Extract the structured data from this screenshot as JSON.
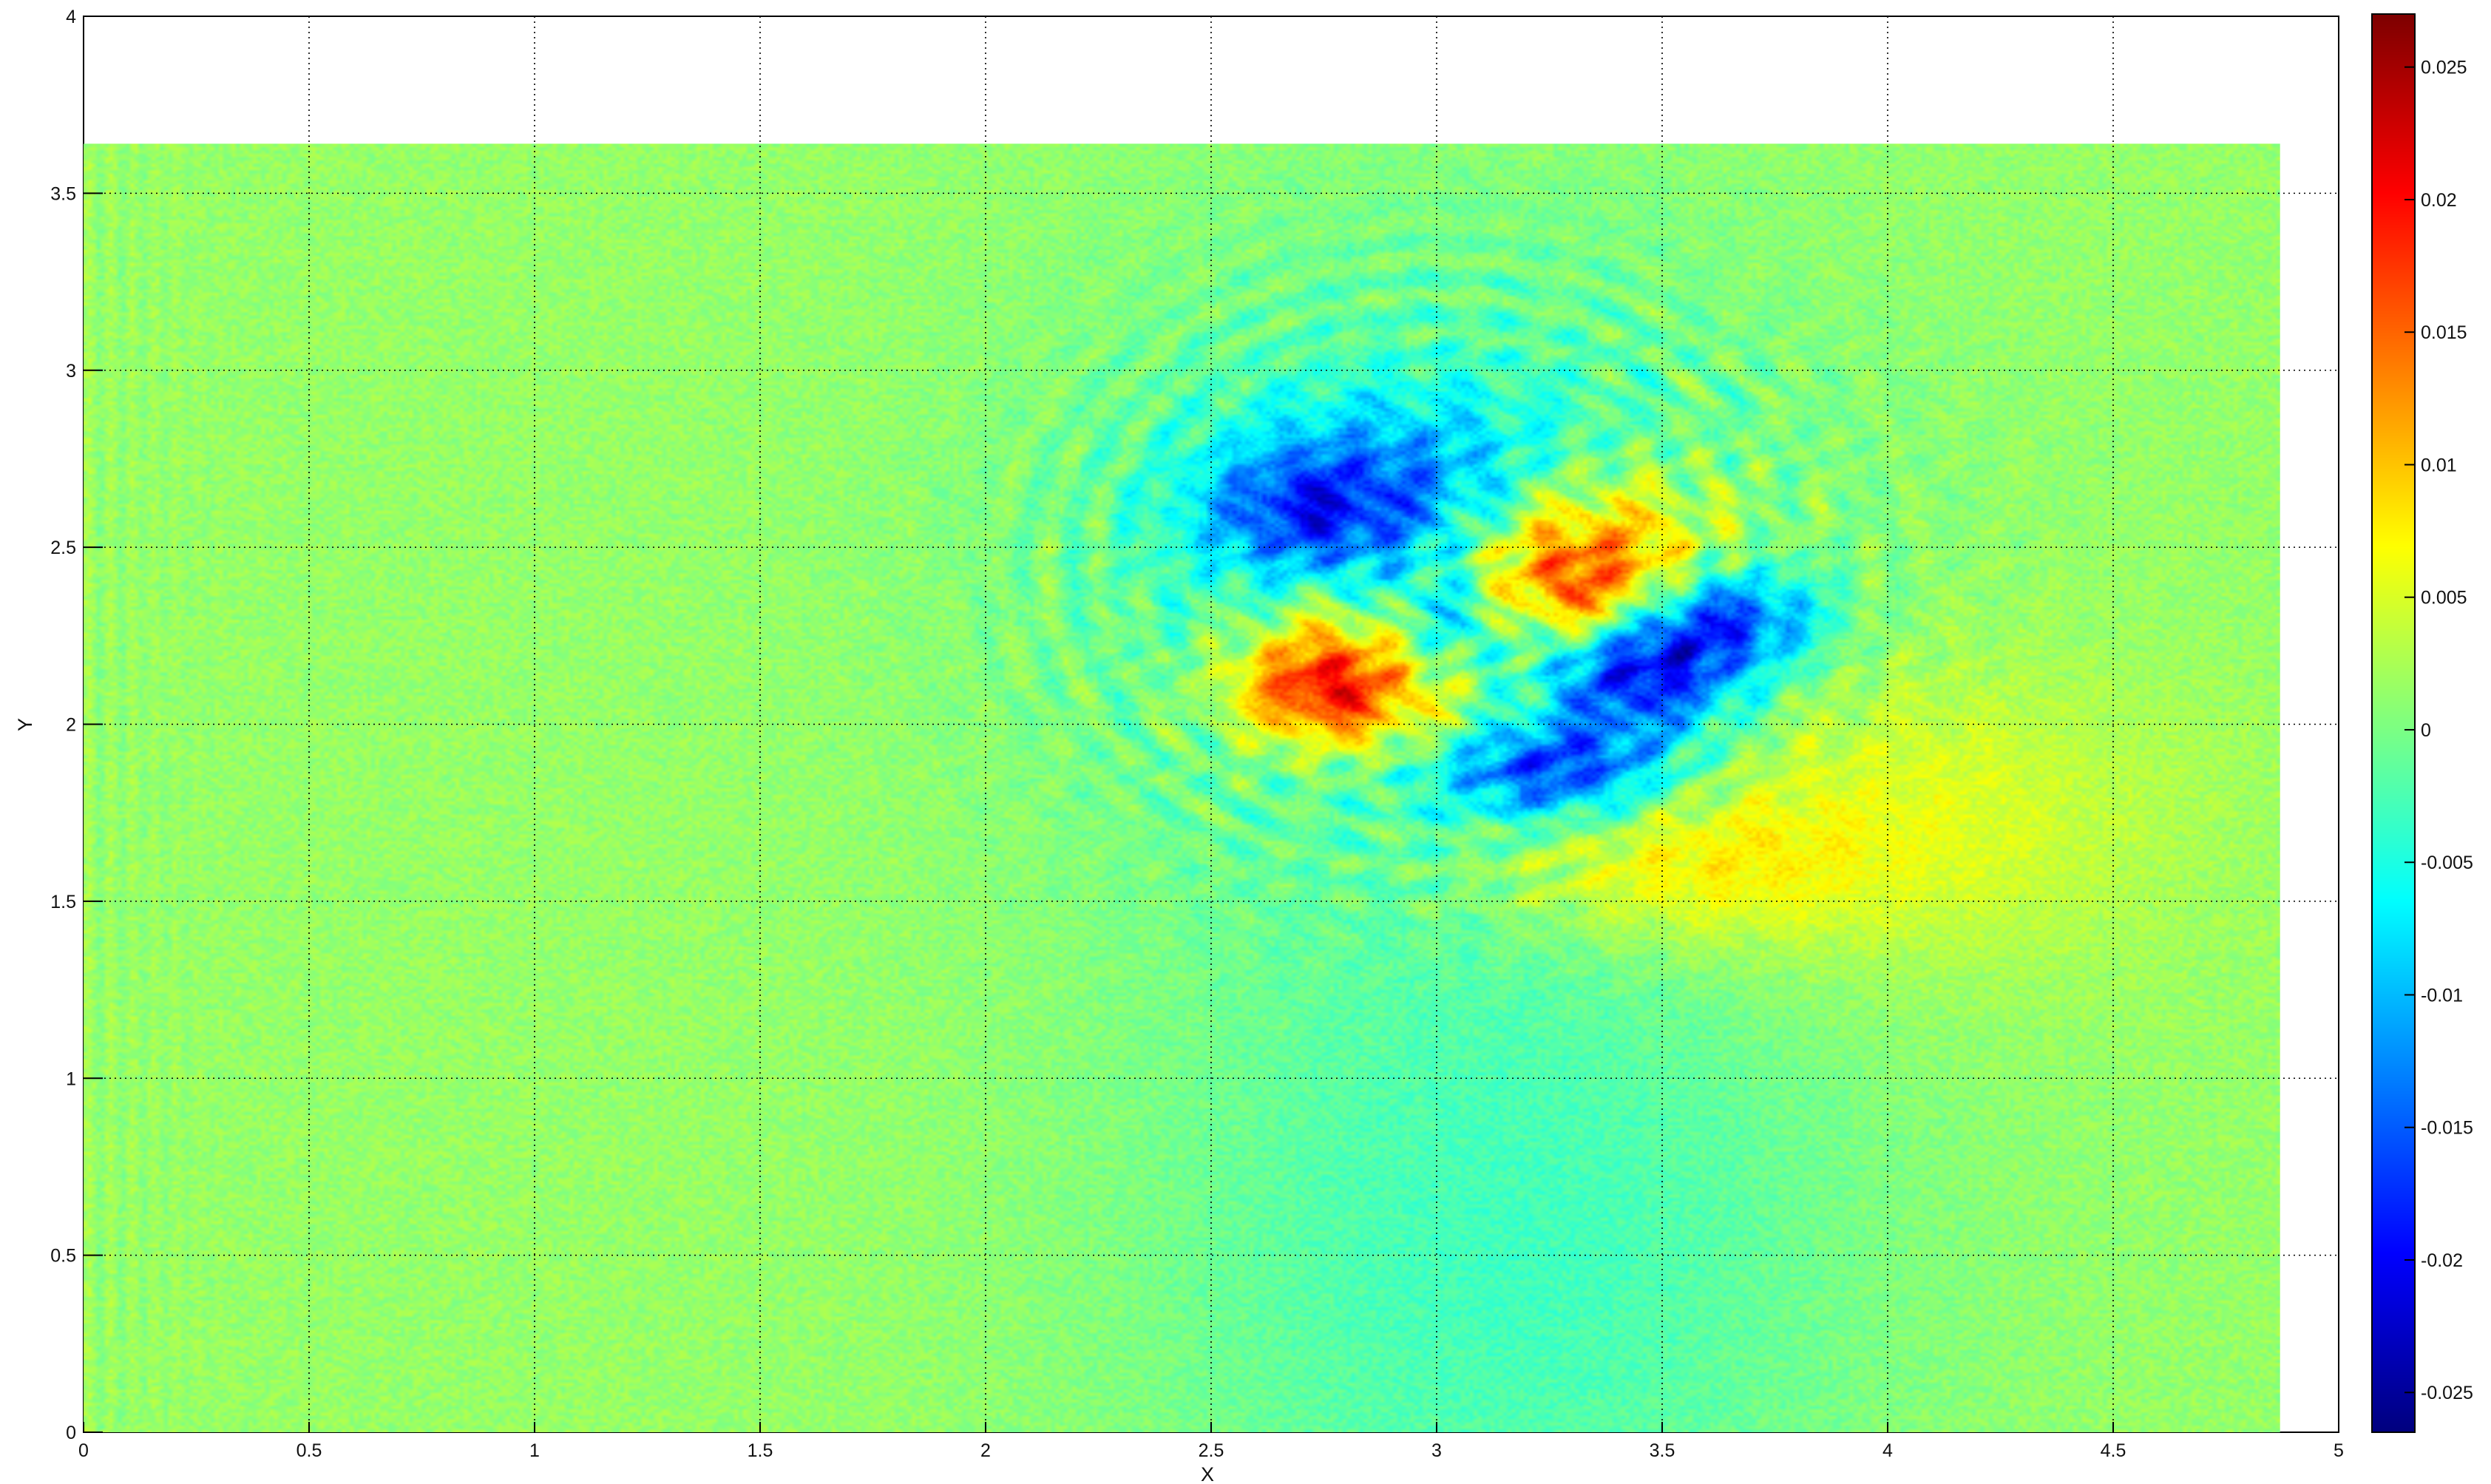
{
  "chart_data": {
    "type": "heatmap",
    "title": "",
    "xlabel": "X",
    "ylabel": "Y",
    "xlim": [
      0,
      5
    ],
    "ylim": [
      0,
      4
    ],
    "x_ticks": [
      0,
      0.5,
      1,
      1.5,
      2,
      2.5,
      3,
      3.5,
      4,
      4.5,
      5
    ],
    "x_tick_labels": [
      "0",
      "0.5",
      "1",
      "1.5",
      "2",
      "2.5",
      "3",
      "3.5",
      "4",
      "4.5",
      "5"
    ],
    "y_ticks": [
      0,
      0.5,
      1,
      1.5,
      2,
      2.5,
      3,
      3.5,
      4
    ],
    "y_tick_labels": [
      "0",
      "0.5",
      "1",
      "1.5",
      "2",
      "2.5",
      "3",
      "3.5",
      "4"
    ],
    "grid": true,
    "data_extent": {
      "x": [
        0,
        4.87
      ],
      "y": [
        0,
        3.64
      ]
    },
    "colormap": "jet",
    "colorbar": {
      "range": [
        -0.0265,
        0.027
      ],
      "ticks": [
        0.025,
        0.02,
        0.015,
        0.01,
        0.005,
        0,
        -0.005,
        -0.01,
        -0.015,
        -0.02,
        -0.025
      ],
      "tick_labels": [
        "0.025",
        "0.02",
        "0.015",
        "0.01",
        "0.005",
        "0",
        "-0.005",
        "-0.01",
        "-0.015",
        "-0.02",
        "-0.025"
      ],
      "placement": "right"
    },
    "background_value": 0.0015,
    "features": [
      {
        "x": 3.0,
        "y": 2.45,
        "sx": 0.55,
        "sy": 0.62,
        "value": -0.0055
      },
      {
        "x": 3.15,
        "y": 0.5,
        "sx": 0.55,
        "sy": 0.75,
        "value": -0.0045
      },
      {
        "x": 4.0,
        "y": 1.75,
        "sx": 0.4,
        "sy": 0.3,
        "value": 0.0045
      },
      {
        "x": 3.3,
        "y": 2.5,
        "sx": 0.22,
        "sy": 0.18,
        "value": 0.016
      },
      {
        "x": 2.75,
        "y": 2.1,
        "sx": 0.14,
        "sy": 0.1,
        "value": 0.017
      },
      {
        "x": 3.3,
        "y": 2.35,
        "sx": 0.15,
        "sy": 0.12,
        "value": 0.01
      },
      {
        "x": 2.8,
        "y": 2.25,
        "sx": 0.15,
        "sy": 0.12,
        "value": 0.008
      },
      {
        "x": 3.0,
        "y": 2.0,
        "sx": 0.25,
        "sy": 0.12,
        "value": 0.006
      },
      {
        "x": 3.5,
        "y": 1.6,
        "sx": 0.3,
        "sy": 0.15,
        "value": 0.006
      },
      {
        "x": 3.45,
        "y": 2.15,
        "sx": 0.15,
        "sy": 0.12,
        "value": -0.02
      },
      {
        "x": 3.25,
        "y": 1.88,
        "sx": 0.18,
        "sy": 0.1,
        "value": -0.017
      },
      {
        "x": 3.65,
        "y": 2.3,
        "sx": 0.14,
        "sy": 0.1,
        "value": -0.015
      },
      {
        "x": 2.95,
        "y": 2.65,
        "sx": 0.3,
        "sy": 0.18,
        "value": -0.011
      },
      {
        "x": 2.7,
        "y": 2.6,
        "sx": 0.15,
        "sy": 0.12,
        "value": -0.009
      },
      {
        "x": 3.05,
        "y": 2.3,
        "sx": 0.12,
        "sy": 0.1,
        "value": -0.008
      }
    ]
  }
}
